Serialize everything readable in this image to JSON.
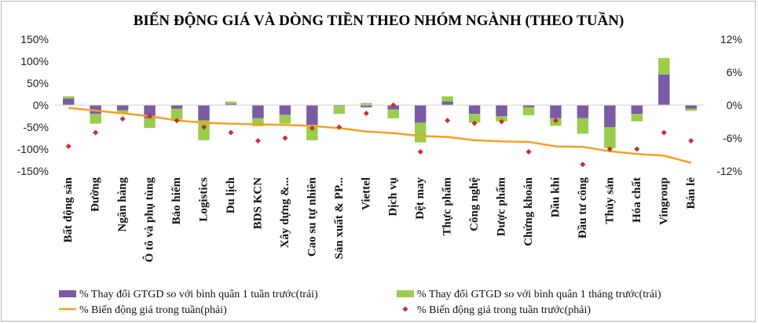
{
  "chart_data": {
    "type": "bar",
    "title": "BIẾN ĐỘNG GIÁ VÀ DÒNG TIỀN THEO NHÓM NGÀNH (THEO TUẦN)",
    "categories": [
      "Bất động sản",
      "Đường",
      "Ngân hàng",
      "Ô tô và phụ tùng",
      "Bảo hiểm",
      "Logistics",
      "Du lịch",
      "BDS KCN",
      "Xây dựng &...",
      "Cao su tự nhiên",
      "Sản xuất & PP...",
      "Viettel",
      "Dịch vụ",
      "Dệt may",
      "Thực phẩm",
      "Công nghệ",
      "Dược phẩm",
      "Chứng khoán",
      "Dầu khí",
      "Đầu tư công",
      "Thủy sản",
      "Hóa chất",
      "Vingroup",
      "Bán lẻ"
    ],
    "series": [
      {
        "name": "% Thay đổi GTGD so với bình quân 1 tuần trước(trái)",
        "color": "#7b5ba6",
        "values": [
          15,
          -20,
          -12,
          -30,
          -8,
          -35,
          3,
          -30,
          -22,
          -45,
          -2,
          -5,
          -10,
          -40,
          8,
          -20,
          -25,
          -5,
          -30,
          -30,
          -50,
          -20,
          70,
          -8
        ]
      },
      {
        "name": "% Thay đổi GTGD so với bình quân 1 tháng trước(trái)",
        "color": "#9acd4c",
        "values": [
          5,
          -22,
          -8,
          -22,
          -25,
          -45,
          5,
          -18,
          -20,
          -35,
          -18,
          5,
          -20,
          -45,
          12,
          -20,
          -12,
          -18,
          -17,
          -35,
          -48,
          -17,
          37,
          -5
        ]
      },
      {
        "name": "% Biến động giá trong tuần(phải)",
        "color": "#f4a024",
        "values": [
          -0.5,
          -1.0,
          -1.5,
          -2.0,
          -2.8,
          -3.2,
          -3.4,
          -3.5,
          -3.6,
          -3.8,
          -4.2,
          -4.8,
          -5.1,
          -5.6,
          -5.8,
          -6.4,
          -6.6,
          -6.7,
          -7.5,
          -7.6,
          -8.4,
          -8.9,
          -9.2,
          -10.5
        ]
      },
      {
        "name": "% Biến động giá trong tuần trước(phải)",
        "color": "#c9302c",
        "values": [
          -7.5,
          -5.0,
          -2.5,
          -2.0,
          -2.8,
          -4.0,
          -5.0,
          -6.5,
          -6.0,
          -4.2,
          -4.0,
          -1.5,
          0.0,
          -8.5,
          -2.8,
          -3.3,
          -3.0,
          -8.5,
          -2.8,
          -10.8,
          -8.0,
          -8.0,
          -5.0,
          -6.5
        ]
      }
    ],
    "y_left": {
      "ylim": [
        -150,
        150
      ],
      "ticks": [
        "150%",
        "100%",
        "50%",
        "0%",
        "-50%",
        "-100%",
        "-150%"
      ],
      "tick_values": [
        150,
        100,
        50,
        0,
        -50,
        -100,
        -150
      ]
    },
    "y_right": {
      "ylim": [
        -12,
        12
      ],
      "ticks": [
        "12%",
        "6%",
        "0%",
        "-6%",
        "-12%"
      ],
      "tick_values": [
        12,
        6,
        0,
        -6,
        -12
      ]
    },
    "legend_position": "bottom",
    "grid": false
  }
}
